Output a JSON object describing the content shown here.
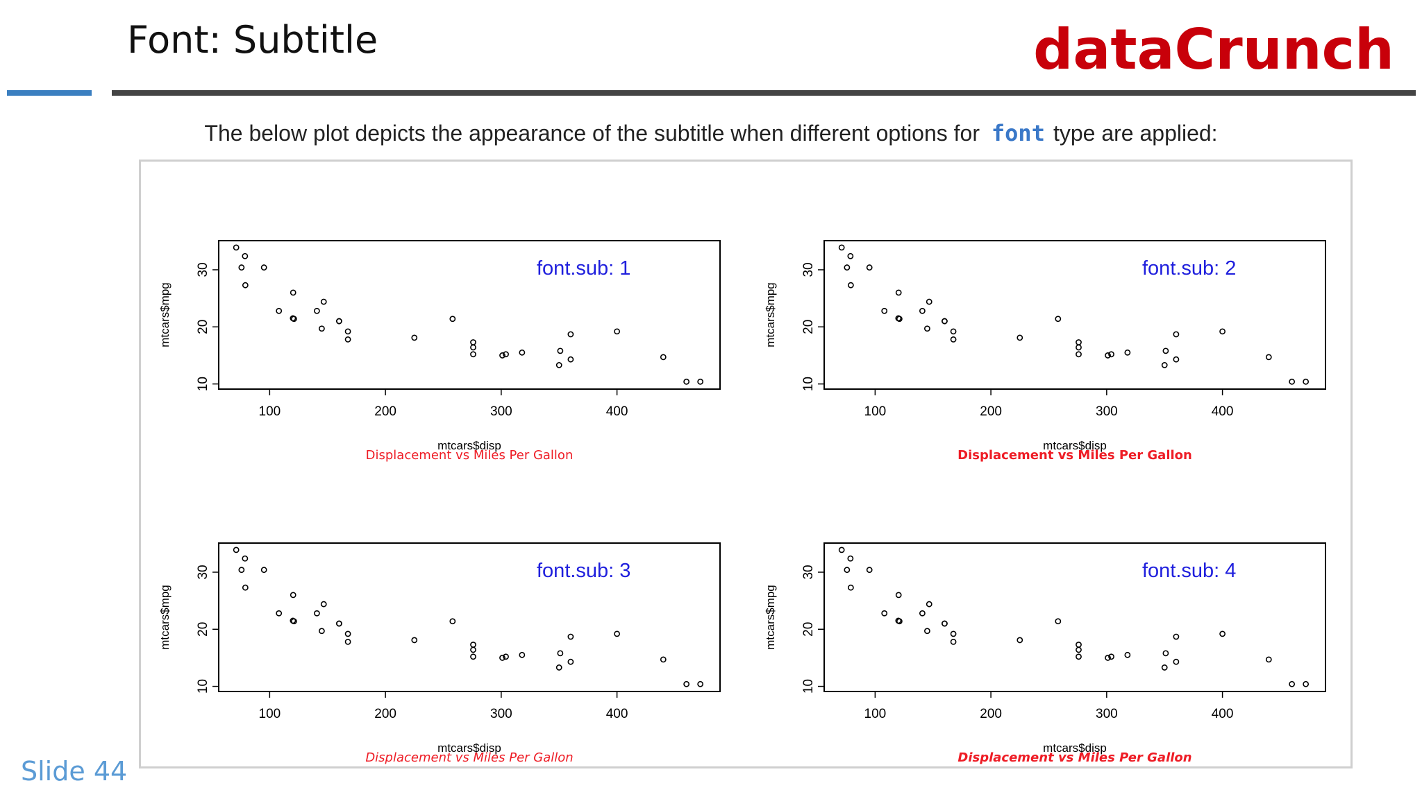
{
  "slide": {
    "title": "Font: Subtitle",
    "brand": "dataCrunch",
    "intro_before": "The below plot depicts the appearance of the subtitle when different options for",
    "intro_code": "font",
    "intro_after": "type are applied:",
    "slide_number": "Slide 44"
  },
  "colors": {
    "brand": "#c8000a",
    "accent_blue": "#3b7fc0",
    "rule_dark": "#444444",
    "code_blue": "#3a78c8",
    "panel_label": "#2020dd",
    "subtitle_red": "#ee1c25",
    "slide_number": "#5b9bd5"
  },
  "chart_data": [
    {
      "type": "scatter",
      "annotation": "font.sub: 1",
      "xlabel": "mtcars$disp",
      "ylabel": "mtcars$mpg",
      "subtitle": "Displacement vs Miles Per Gallon",
      "subtitle_font": 1,
      "xlim": [
        56,
        489
      ],
      "ylim": [
        9.1,
        35.1
      ],
      "xticks": [
        100,
        200,
        300,
        400
      ],
      "yticks": [
        10,
        20,
        30
      ],
      "x": [
        160,
        160,
        108,
        258,
        360,
        225,
        360,
        146.7,
        140.8,
        167.6,
        167.6,
        275.8,
        275.8,
        275.8,
        472,
        460,
        440,
        78.7,
        75.7,
        71.1,
        120.1,
        318,
        304,
        350,
        400,
        79,
        120.3,
        95.1,
        351,
        145,
        301,
        121
      ],
      "y": [
        21,
        21,
        22.8,
        21.4,
        18.7,
        18.1,
        14.3,
        24.4,
        22.8,
        19.2,
        17.8,
        16.4,
        17.3,
        15.2,
        10.4,
        10.4,
        14.7,
        32.4,
        30.4,
        33.9,
        21.5,
        15.5,
        15.2,
        13.3,
        19.2,
        27.3,
        26,
        30.4,
        15.8,
        19.7,
        15,
        21.4
      ]
    },
    {
      "type": "scatter",
      "annotation": "font.sub: 2",
      "xlabel": "mtcars$disp",
      "ylabel": "mtcars$mpg",
      "subtitle": "Displacement vs Miles Per Gallon",
      "subtitle_font": 2,
      "xlim": [
        56,
        489
      ],
      "ylim": [
        9.1,
        35.1
      ],
      "xticks": [
        100,
        200,
        300,
        400
      ],
      "yticks": [
        10,
        20,
        30
      ],
      "x": [
        160,
        160,
        108,
        258,
        360,
        225,
        360,
        146.7,
        140.8,
        167.6,
        167.6,
        275.8,
        275.8,
        275.8,
        472,
        460,
        440,
        78.7,
        75.7,
        71.1,
        120.1,
        318,
        304,
        350,
        400,
        79,
        120.3,
        95.1,
        351,
        145,
        301,
        121
      ],
      "y": [
        21,
        21,
        22.8,
        21.4,
        18.7,
        18.1,
        14.3,
        24.4,
        22.8,
        19.2,
        17.8,
        16.4,
        17.3,
        15.2,
        10.4,
        10.4,
        14.7,
        32.4,
        30.4,
        33.9,
        21.5,
        15.5,
        15.2,
        13.3,
        19.2,
        27.3,
        26,
        30.4,
        15.8,
        19.7,
        15,
        21.4
      ]
    },
    {
      "type": "scatter",
      "annotation": "font.sub: 3",
      "xlabel": "mtcars$disp",
      "ylabel": "mtcars$mpg",
      "subtitle": "Displacement vs Miles Per Gallon",
      "subtitle_font": 3,
      "xlim": [
        56,
        489
      ],
      "ylim": [
        9.1,
        35.1
      ],
      "xticks": [
        100,
        200,
        300,
        400
      ],
      "yticks": [
        10,
        20,
        30
      ],
      "x": [
        160,
        160,
        108,
        258,
        360,
        225,
        360,
        146.7,
        140.8,
        167.6,
        167.6,
        275.8,
        275.8,
        275.8,
        472,
        460,
        440,
        78.7,
        75.7,
        71.1,
        120.1,
        318,
        304,
        350,
        400,
        79,
        120.3,
        95.1,
        351,
        145,
        301,
        121
      ],
      "y": [
        21,
        21,
        22.8,
        21.4,
        18.7,
        18.1,
        14.3,
        24.4,
        22.8,
        19.2,
        17.8,
        16.4,
        17.3,
        15.2,
        10.4,
        10.4,
        14.7,
        32.4,
        30.4,
        33.9,
        21.5,
        15.5,
        15.2,
        13.3,
        19.2,
        27.3,
        26,
        30.4,
        15.8,
        19.7,
        15,
        21.4
      ]
    },
    {
      "type": "scatter",
      "annotation": "font.sub: 4",
      "xlabel": "mtcars$disp",
      "ylabel": "mtcars$mpg",
      "subtitle": "Displacement vs Miles Per Gallon",
      "subtitle_font": 4,
      "xlim": [
        56,
        489
      ],
      "ylim": [
        9.1,
        35.1
      ],
      "xticks": [
        100,
        200,
        300,
        400
      ],
      "yticks": [
        10,
        20,
        30
      ],
      "x": [
        160,
        160,
        108,
        258,
        360,
        225,
        360,
        146.7,
        140.8,
        167.6,
        167.6,
        275.8,
        275.8,
        275.8,
        472,
        460,
        440,
        78.7,
        75.7,
        71.1,
        120.1,
        318,
        304,
        350,
        400,
        79,
        120.3,
        95.1,
        351,
        145,
        301,
        121
      ],
      "y": [
        21,
        21,
        22.8,
        21.4,
        18.7,
        18.1,
        14.3,
        24.4,
        22.8,
        19.2,
        17.8,
        16.4,
        17.3,
        15.2,
        10.4,
        10.4,
        14.7,
        32.4,
        30.4,
        33.9,
        21.5,
        15.5,
        15.2,
        13.3,
        19.2,
        27.3,
        26,
        30.4,
        15.8,
        19.7,
        15,
        21.4
      ]
    }
  ]
}
